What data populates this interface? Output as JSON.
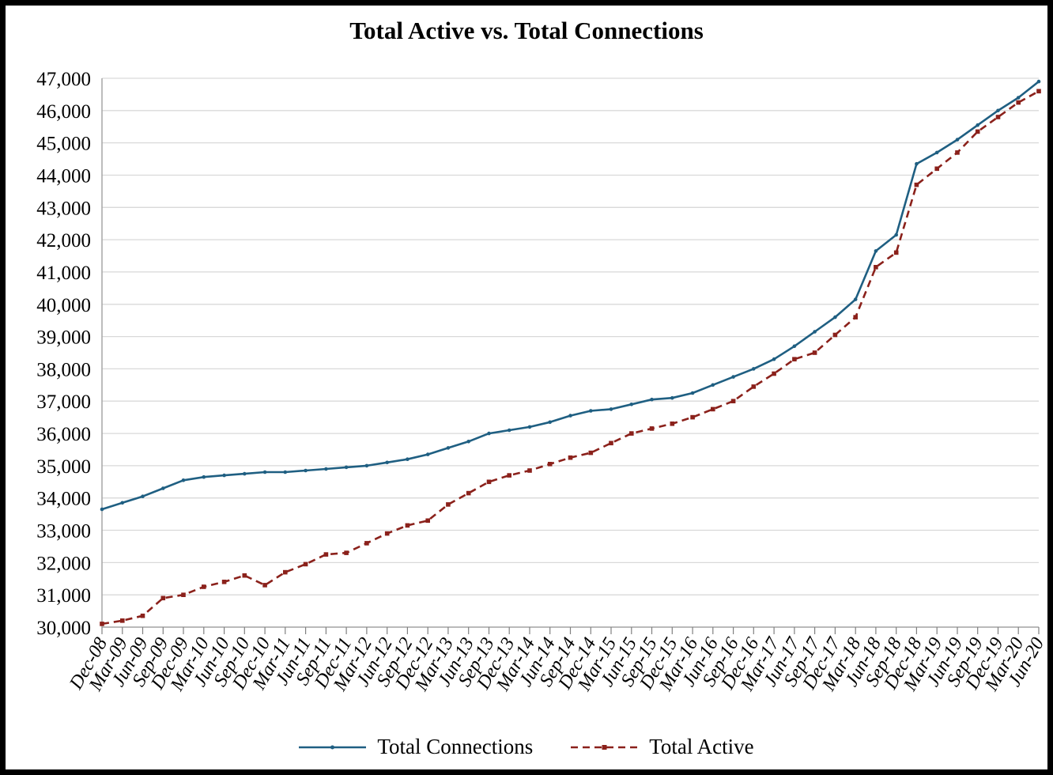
{
  "title": "Total Active vs. Total Connections",
  "legend": {
    "items": [
      {
        "label": "Total Connections"
      },
      {
        "label": "Total Active"
      }
    ]
  },
  "chart_data": {
    "type": "line",
    "title": "Total Active vs. Total Connections",
    "xlabel": "",
    "ylabel": "",
    "ylim": [
      30000,
      47000
    ],
    "y_tick_step": 1000,
    "grid": "horizontal",
    "legend_position": "bottom",
    "x": [
      "Dec-08",
      "Mar-09",
      "Jun-09",
      "Sep-09",
      "Dec-09",
      "Mar-10",
      "Jun-10",
      "Sep-10",
      "Dec-10",
      "Mar-11",
      "Jun-11",
      "Sep-11",
      "Dec-11",
      "Mar-12",
      "Jun-12",
      "Sep-12",
      "Dec-12",
      "Mar-13",
      "Jun-13",
      "Sep-13",
      "Dec-13",
      "Mar-14",
      "Jun-14",
      "Sep-14",
      "Dec-14",
      "Mar-15",
      "Jun-15",
      "Sep-15",
      "Dec-15",
      "Mar-16",
      "Jun-16",
      "Sep-16",
      "Dec-16",
      "Mar-17",
      "Jun-17",
      "Sep-17",
      "Dec-17",
      "Mar-18",
      "Jun-18",
      "Sep-18",
      "Dec-18",
      "Mar-19",
      "Jun-19",
      "Sep-19",
      "Dec-19",
      "Mar-20",
      "Jun-20"
    ],
    "series": [
      {
        "name": "Total Connections",
        "color": "#1F5F82",
        "style": "solid",
        "marker": "dot",
        "values": [
          33650,
          33850,
          34050,
          34300,
          34550,
          34650,
          34700,
          34750,
          34800,
          34800,
          34850,
          34900,
          34950,
          35000,
          35100,
          35200,
          35350,
          35550,
          35750,
          36000,
          36100,
          36200,
          36350,
          36550,
          36700,
          36750,
          36900,
          37050,
          37100,
          37250,
          37500,
          37750,
          38000,
          38300,
          38700,
          39150,
          39600,
          40150,
          41650,
          42150,
          44350,
          44700,
          45100,
          45550,
          46000,
          46400,
          46900
        ]
      },
      {
        "name": "Total Active",
        "color": "#8B211B",
        "style": "dashed",
        "marker": "square",
        "values": [
          30100,
          30200,
          30350,
          30900,
          31000,
          31250,
          31400,
          31600,
          31300,
          31700,
          31950,
          32250,
          32300,
          32600,
          32900,
          33150,
          33300,
          33800,
          34150,
          34500,
          34700,
          34850,
          35050,
          35250,
          35400,
          35700,
          36000,
          36150,
          36300,
          36500,
          36750,
          37000,
          37450,
          37850,
          38300,
          38500,
          39050,
          39600,
          41150,
          41600,
          43700,
          44200,
          44700,
          45350,
          45800,
          46250,
          46600
        ]
      }
    ],
    "colors": {
      "grid": "#D9D9D9",
      "axis": "#A6A6A6",
      "tick": "#808080"
    }
  }
}
